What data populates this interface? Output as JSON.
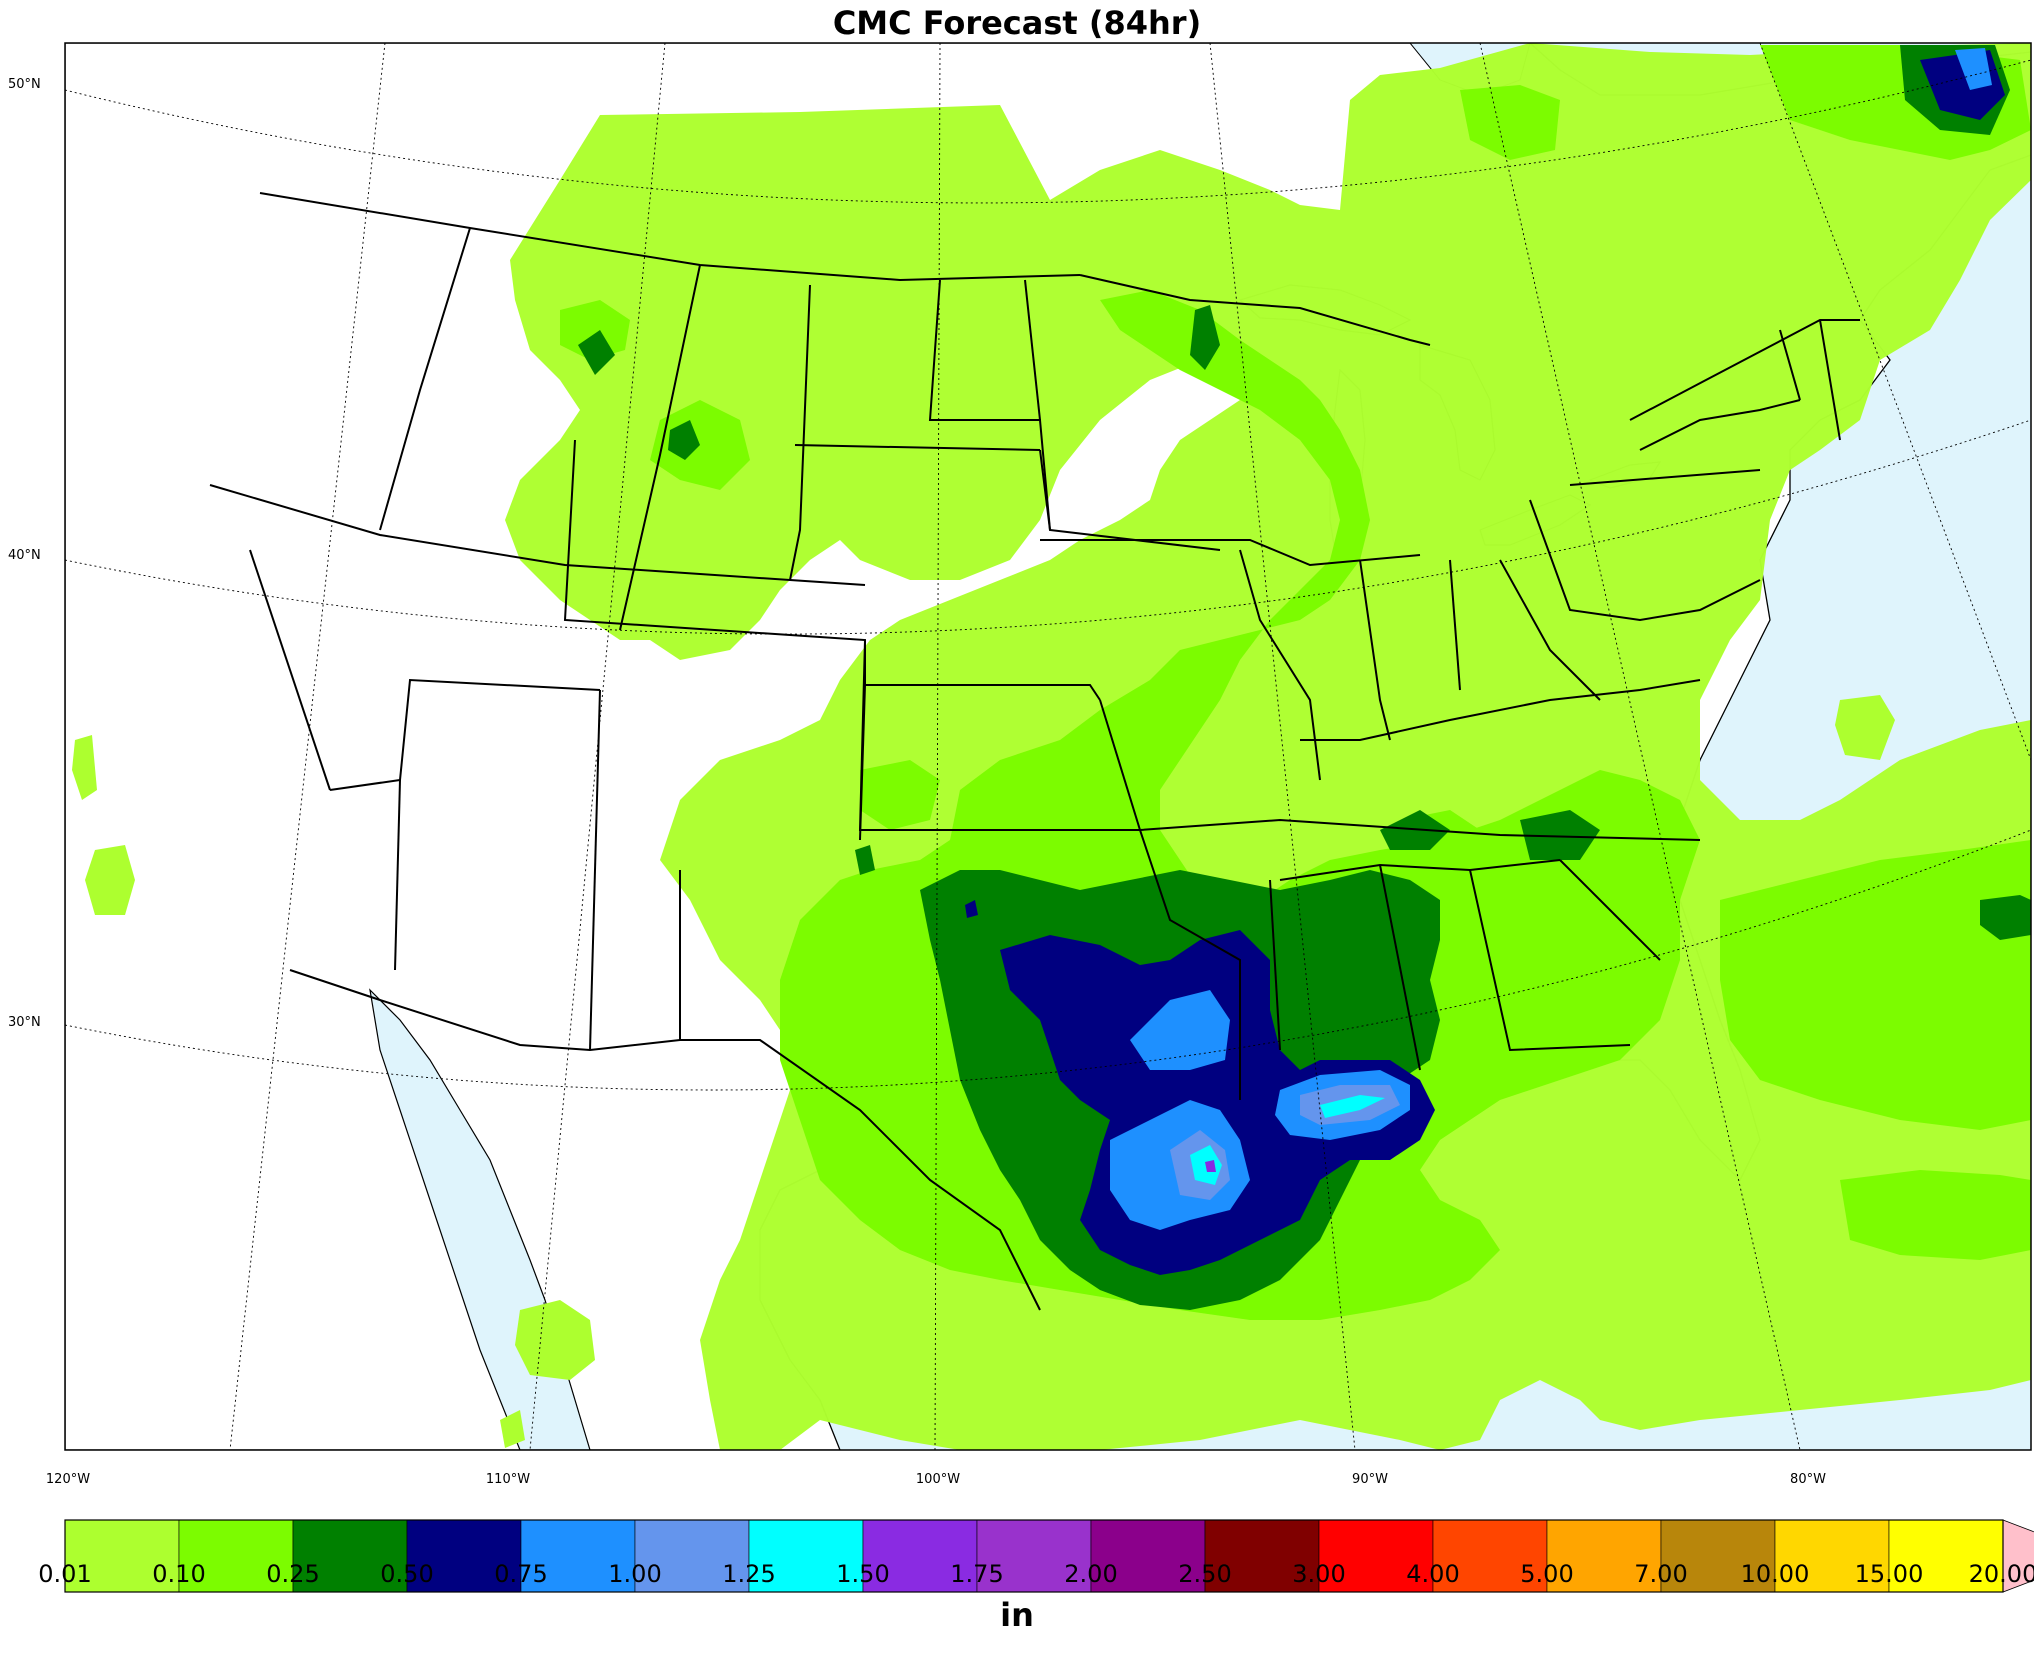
{
  "title": "CMC Forecast (84hr)",
  "latitude_labels": [
    "50°N",
    "40°N",
    "30°N"
  ],
  "longitude_labels": [
    "120°W",
    "110°W",
    "100°W",
    "90°W",
    "80°W"
  ],
  "colorbar": {
    "unit": "in",
    "ticks": [
      "0.01",
      "0.10",
      "0.25",
      "0.50",
      "0.75",
      "1.00",
      "1.25",
      "1.50",
      "1.75",
      "2.00",
      "2.50",
      "3.00",
      "4.00",
      "5.00",
      "7.00",
      "10.00",
      "15.00",
      "20.00"
    ],
    "colors": [
      "#adff2f",
      "#7cfc00",
      "#008000",
      "#000080",
      "#1e90ff",
      "#6495ed",
      "#00ffff",
      "#8a2be2",
      "#9932cc",
      "#8b008b",
      "#800000",
      "#ff0000",
      "#ff4500",
      "#ffa500",
      "#b8860b",
      "#ffd700",
      "#ffff00"
    ],
    "extend_color": "#ffc0cb"
  },
  "colors": {
    "water": "#dff4fc",
    "land": "#ffffff"
  }
}
